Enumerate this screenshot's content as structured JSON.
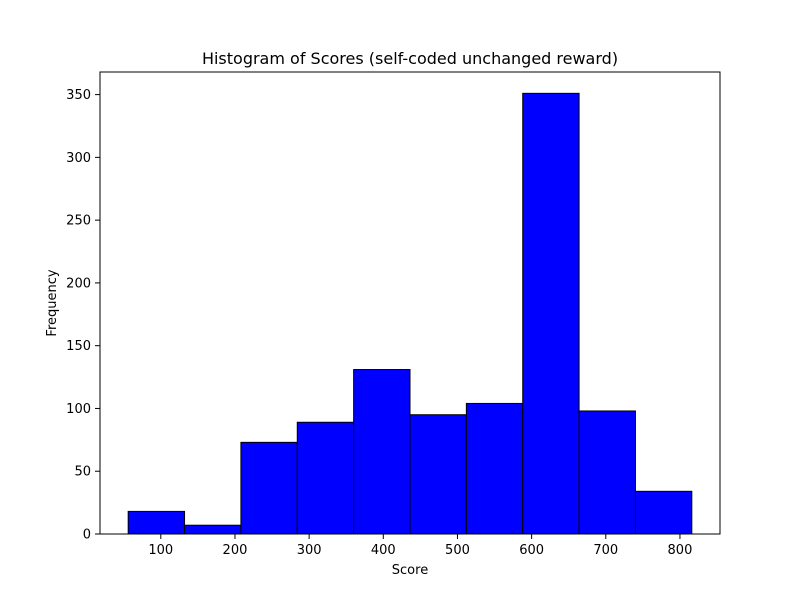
{
  "chart_data": {
    "type": "bar",
    "title": "Histogram of Scores (self-coded unchanged reward)",
    "xlabel": "Score",
    "ylabel": "Frequency",
    "bar_color": "#0000ff",
    "edge_color": "#000000",
    "bins": [
      {
        "start": 56,
        "end": 132,
        "count": 18
      },
      {
        "start": 132,
        "end": 208,
        "count": 7
      },
      {
        "start": 208,
        "end": 284,
        "count": 73
      },
      {
        "start": 284,
        "end": 360,
        "count": 89
      },
      {
        "start": 360,
        "end": 436,
        "count": 131
      },
      {
        "start": 436,
        "end": 512,
        "count": 95
      },
      {
        "start": 512,
        "end": 588,
        "count": 104
      },
      {
        "start": 588,
        "end": 664,
        "count": 351
      },
      {
        "start": 664,
        "end": 740,
        "count": 98
      },
      {
        "start": 740,
        "end": 816,
        "count": 34
      }
    ],
    "xlim": [
      18,
      854
    ],
    "ylim": [
      0,
      368
    ],
    "xticks": [
      100,
      200,
      300,
      400,
      500,
      600,
      700,
      800
    ],
    "yticks": [
      0,
      50,
      100,
      150,
      200,
      250,
      300,
      350
    ],
    "grid": false
  }
}
